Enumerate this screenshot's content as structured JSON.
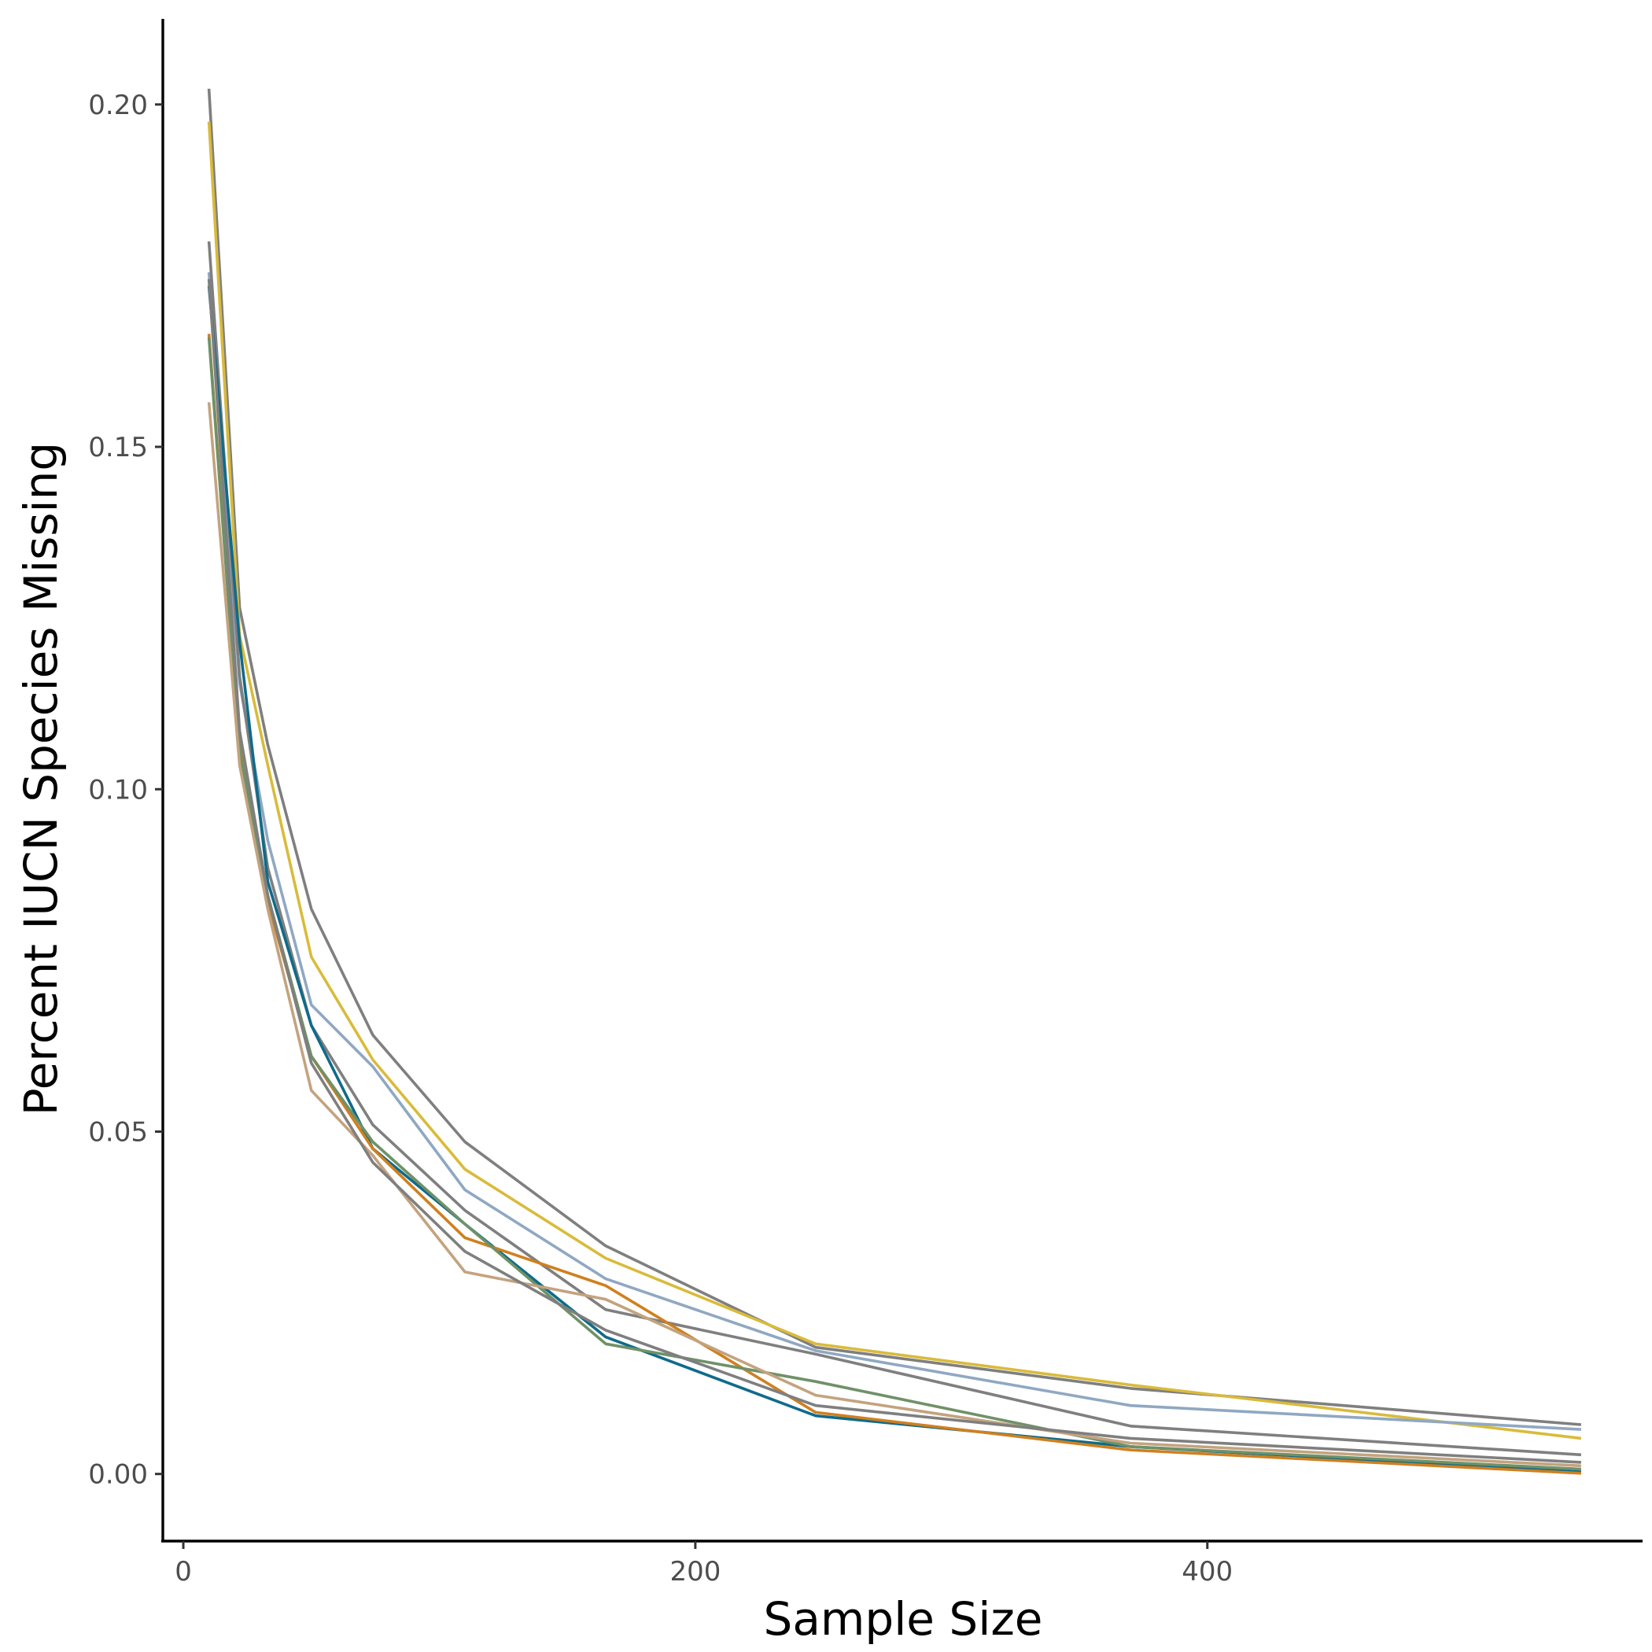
{
  "chart_data": {
    "type": "line",
    "xlabel": "Sample Size",
    "ylabel": "Percent IUCN Species Missing",
    "xlim": [
      -8,
      570
    ],
    "ylim": [
      -0.0098,
      0.2125
    ],
    "x_ticks": [
      0,
      200,
      400
    ],
    "x_tick_labels": [
      "0",
      "200",
      "400"
    ],
    "y_ticks": [
      0.0,
      0.05,
      0.1,
      0.15,
      0.2
    ],
    "y_tick_labels": [
      "0.00",
      "0.05",
      "0.10",
      "0.15",
      "0.20"
    ],
    "grid": false,
    "legend": "none",
    "x": [
      10,
      22,
      33,
      50,
      74,
      110,
      165,
      247,
      370,
      546
    ],
    "series": [
      {
        "color": "#7f7f7f",
        "values": [
          0.2023,
          0.1265,
          0.1065,
          0.0825,
          0.0641,
          0.0485,
          0.0333,
          0.0185,
          0.0125,
          0.0072
        ]
      },
      {
        "color": "#d9bb3b",
        "values": [
          0.1975,
          0.1225,
          0.1035,
          0.0755,
          0.0605,
          0.0445,
          0.0315,
          0.019,
          0.013,
          0.0052
        ]
      },
      {
        "color": "#8fa8c2",
        "values": [
          0.1755,
          0.1155,
          0.0925,
          0.0685,
          0.0595,
          0.0415,
          0.0285,
          0.018,
          0.01,
          0.0065
        ]
      },
      {
        "color": "#7f7f7f",
        "values": [
          0.18,
          0.1165,
          0.0885,
          0.0655,
          0.051,
          0.0385,
          0.024,
          0.0175,
          0.007,
          0.0028
        ]
      },
      {
        "color": "#0f6b8a",
        "values": [
          0.1735,
          0.1215,
          0.0865,
          0.0655,
          0.0475,
          0.0365,
          0.02,
          0.0085,
          0.004,
          0.0003
        ]
      },
      {
        "color": "#d0801f",
        "values": [
          0.1665,
          0.1065,
          0.0835,
          0.061,
          0.0475,
          0.0345,
          0.0275,
          0.009,
          0.0035,
          0.0001
        ]
      },
      {
        "color": "#6f9168",
        "values": [
          0.166,
          0.1055,
          0.0845,
          0.061,
          0.0485,
          0.0365,
          0.019,
          0.0135,
          0.004,
          0.0007
        ]
      },
      {
        "color": "#c3a37e",
        "values": [
          0.1565,
          0.1035,
          0.0825,
          0.056,
          0.0465,
          0.0295,
          0.0255,
          0.0115,
          0.0045,
          0.0012
        ]
      },
      {
        "color": "#7f7f7f",
        "values": [
          0.1745,
          0.1085,
          0.0845,
          0.06,
          0.0455,
          0.0325,
          0.021,
          0.01,
          0.0052,
          0.0017
        ]
      }
    ]
  }
}
